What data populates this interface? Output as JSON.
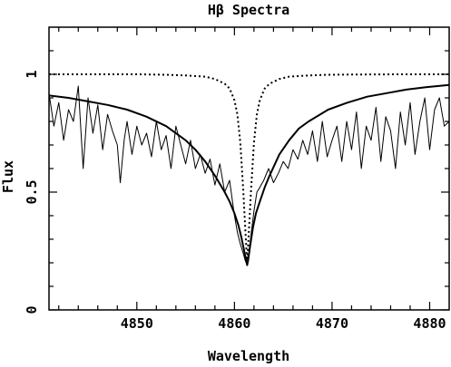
{
  "chart_data": {
    "type": "line",
    "title": "Hβ Spectra",
    "xlabel": "Wavelength",
    "ylabel": "Flux",
    "xlim": [
      4841,
      4882
    ],
    "ylim": [
      0,
      1.2
    ],
    "x_major_ticks": [
      4850,
      4860,
      4870,
      4880
    ],
    "x_tick_labels": [
      "4850",
      "4860",
      "4870",
      "4880"
    ],
    "x_minor_ticks": [
      4842,
      4844,
      4846,
      4848,
      4852,
      4854,
      4856,
      4858,
      4862,
      4864,
      4866,
      4868,
      4872,
      4874,
      4876,
      4878
    ],
    "y_major_ticks": [
      0,
      0.5,
      1
    ],
    "y_tick_labels": [
      "0",
      "0.5",
      "1"
    ],
    "y_minor_ticks": [
      0.1,
      0.2,
      0.3,
      0.4,
      0.6,
      0.7,
      0.8,
      0.9,
      1.1
    ],
    "grid": false,
    "legend": "none",
    "line_center": 4861.3,
    "series": [
      {
        "style": "dotted",
        "color": "#000000",
        "x": [
          4841,
          4845,
          4850,
          4853,
          4855,
          4857,
          4858,
          4859,
          4859.5,
          4860,
          4860.3,
          4860.6,
          4860.9,
          4861.1,
          4861.3,
          4861.5,
          4861.7,
          4862,
          4862.3,
          4862.6,
          4863.1,
          4863.6,
          4864.6,
          4865.6,
          4867.6,
          4869.6,
          4872,
          4877,
          4882
        ],
        "y": [
          1.0,
          1.0,
          1.0,
          0.998,
          0.995,
          0.99,
          0.98,
          0.96,
          0.94,
          0.89,
          0.83,
          0.71,
          0.51,
          0.35,
          0.2,
          0.35,
          0.51,
          0.71,
          0.83,
          0.89,
          0.94,
          0.96,
          0.98,
          0.99,
          0.995,
          0.998,
          0.999,
          1.0,
          1.0
        ]
      },
      {
        "style": "solid-thick",
        "color": "#000000",
        "x": [
          4841,
          4843,
          4845,
          4847,
          4849,
          4851,
          4853,
          4855,
          4856,
          4857,
          4858,
          4859,
          4859.5,
          4860,
          4860.4,
          4860.7,
          4861,
          4861.2,
          4861.3,
          4861.4,
          4861.6,
          4861.9,
          4862.2,
          4862.6,
          4863.1,
          4863.6,
          4864.6,
          4865.6,
          4866.6,
          4867.6,
          4869.6,
          4871.6,
          4873.6,
          4875.6,
          4877.6,
          4879.6,
          4882
        ],
        "y": [
          0.91,
          0.9,
          0.885,
          0.87,
          0.85,
          0.82,
          0.78,
          0.72,
          0.68,
          0.63,
          0.57,
          0.5,
          0.46,
          0.41,
          0.36,
          0.31,
          0.25,
          0.21,
          0.19,
          0.21,
          0.27,
          0.35,
          0.41,
          0.46,
          0.52,
          0.57,
          0.66,
          0.72,
          0.77,
          0.8,
          0.85,
          0.88,
          0.905,
          0.92,
          0.935,
          0.945,
          0.955
        ]
      },
      {
        "style": "solid-thin",
        "color": "#000000",
        "x": [
          4841,
          4841.5,
          4842,
          4842.5,
          4843,
          4843.5,
          4844,
          4844.5,
          4845,
          4845.5,
          4846,
          4846.5,
          4847,
          4847.5,
          4848,
          4848.3,
          4848.7,
          4849,
          4849.5,
          4850,
          4850.5,
          4851,
          4851.5,
          4852,
          4852.5,
          4853,
          4853.5,
          4854,
          4854.5,
          4855,
          4855.5,
          4856,
          4856.5,
          4857,
          4857.5,
          4858,
          4858.5,
          4859,
          4859.5,
          4860,
          4860.3,
          4860.6,
          4860.9,
          4861.1,
          4861.3,
          4861.5,
          4861.7,
          4862,
          4862.3,
          4862.6,
          4863,
          4863.5,
          4864,
          4864.5,
          4865,
          4865.5,
          4866,
          4866.5,
          4867,
          4867.5,
          4868,
          4868.5,
          4869,
          4869.5,
          4870,
          4870.5,
          4871,
          4871.5,
          4872,
          4872.5,
          4873,
          4873.5,
          4874,
          4874.5,
          4875,
          4875.5,
          4876,
          4876.5,
          4877,
          4877.5,
          4878,
          4878.5,
          4879,
          4879.5,
          4880,
          4880.5,
          4881,
          4881.5,
          4882
        ],
        "y": [
          0.92,
          0.78,
          0.88,
          0.72,
          0.85,
          0.8,
          0.95,
          0.6,
          0.9,
          0.75,
          0.87,
          0.68,
          0.83,
          0.76,
          0.7,
          0.54,
          0.72,
          0.8,
          0.66,
          0.78,
          0.7,
          0.75,
          0.65,
          0.8,
          0.68,
          0.74,
          0.6,
          0.78,
          0.7,
          0.62,
          0.72,
          0.6,
          0.66,
          0.58,
          0.64,
          0.53,
          0.62,
          0.5,
          0.55,
          0.4,
          0.33,
          0.28,
          0.24,
          0.21,
          0.19,
          0.25,
          0.32,
          0.42,
          0.5,
          0.52,
          0.55,
          0.6,
          0.54,
          0.58,
          0.63,
          0.6,
          0.68,
          0.64,
          0.72,
          0.66,
          0.76,
          0.63,
          0.8,
          0.65,
          0.72,
          0.78,
          0.63,
          0.8,
          0.68,
          0.84,
          0.6,
          0.78,
          0.72,
          0.86,
          0.63,
          0.82,
          0.76,
          0.6,
          0.84,
          0.7,
          0.88,
          0.66,
          0.8,
          0.9,
          0.68,
          0.85,
          0.9,
          0.78,
          0.8
        ]
      }
    ]
  }
}
